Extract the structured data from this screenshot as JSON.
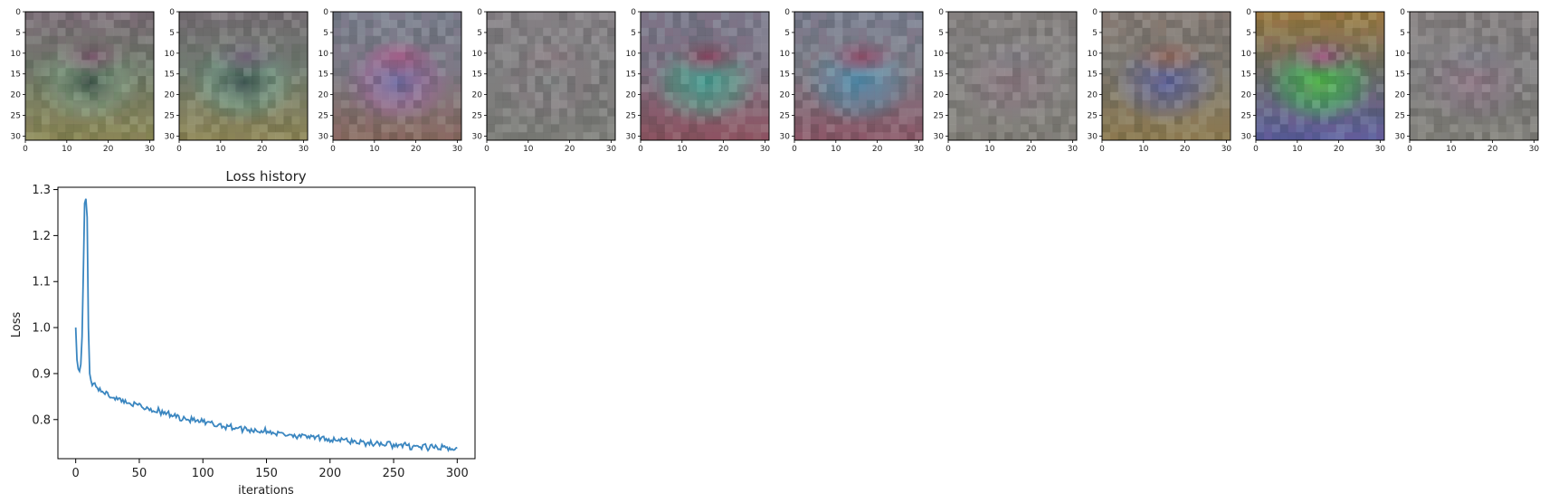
{
  "weights_panels": {
    "count": 10,
    "xlim": [
      0,
      31
    ],
    "ylim": [
      31,
      0
    ],
    "xticks": [
      "0",
      "10",
      "20",
      "30"
    ],
    "yticks": [
      "0",
      "5",
      "10",
      "15",
      "20",
      "25",
      "30"
    ],
    "palettes": [
      {
        "base": "#6f7b6a",
        "top": "#7d6f79",
        "mid": "#7fa083",
        "low": "#8c8a55",
        "core": "#3f5a4d",
        "accent": "#7a4f6b"
      },
      {
        "base": "#707d70",
        "top": "#7a7278",
        "mid": "#6f9a84",
        "low": "#8e8654",
        "core": "#3b5551",
        "accent": "#6f5a74"
      },
      {
        "base": "#7b7c86",
        "top": "#7a7f8e",
        "mid": "#9a6b9d",
        "low": "#8a6b5f",
        "core": "#6e6ba4",
        "accent": "#a55d86"
      },
      {
        "base": "#7f7f80",
        "top": "#858085",
        "mid": "#857c80",
        "low": "#7e7f7a",
        "core": "#7d8181",
        "accent": "#86787e"
      },
      {
        "base": "#7b7484",
        "top": "#7a7a8c",
        "mid": "#56a38c",
        "low": "#8d5561",
        "core": "#3c9a8e",
        "accent": "#9c3f64"
      },
      {
        "base": "#7b7d87",
        "top": "#7b8092",
        "mid": "#5f8fa7",
        "low": "#8c5868",
        "core": "#4f8fb1",
        "accent": "#a14a68"
      },
      {
        "base": "#838280",
        "top": "#85817f",
        "mid": "#8a7c83",
        "low": "#827f78",
        "core": "#8c7981",
        "accent": "#817f86"
      },
      {
        "base": "#7c7a72",
        "top": "#857b75",
        "mid": "#6b6d91",
        "low": "#8c7a4e",
        "core": "#5a61a0",
        "accent": "#9a6a58"
      },
      {
        "base": "#6f7268",
        "top": "#9c7b3d",
        "mid": "#45b05f",
        "low": "#5b5fa0",
        "core": "#52c04a",
        "accent": "#a23f7c"
      },
      {
        "base": "#807f80",
        "top": "#857f7f",
        "mid": "#8a7a86",
        "low": "#807f78",
        "core": "#8f7685",
        "accent": "#7d7f88"
      }
    ]
  },
  "chart_data": {
    "type": "line",
    "title": "Loss history",
    "xlabel": "iterations",
    "ylabel": "Loss",
    "xlim": [
      -14,
      314
    ],
    "ylim": [
      0.715,
      1.305
    ],
    "xticks": [
      0,
      50,
      100,
      150,
      200,
      250,
      300
    ],
    "yticks": [
      0.8,
      0.9,
      1.0,
      1.1,
      1.2,
      1.3
    ],
    "line_color": "#3a86c0",
    "grid": false,
    "series": [
      {
        "keypoints": [
          [
            0,
            1.0
          ],
          [
            1,
            0.93
          ],
          [
            2,
            0.91
          ],
          [
            3,
            0.905
          ],
          [
            4,
            0.92
          ],
          [
            5,
            0.98
          ],
          [
            6,
            1.12
          ],
          [
            7,
            1.27
          ],
          [
            8,
            1.28
          ],
          [
            9,
            1.24
          ],
          [
            10,
            1.0
          ],
          [
            11,
            0.9
          ],
          [
            12,
            0.885
          ],
          [
            15,
            0.875
          ],
          [
            20,
            0.862
          ],
          [
            25,
            0.855
          ],
          [
            30,
            0.848
          ],
          [
            40,
            0.838
          ],
          [
            50,
            0.83
          ],
          [
            60,
            0.822
          ],
          [
            70,
            0.814
          ],
          [
            80,
            0.806
          ],
          [
            90,
            0.8
          ],
          [
            100,
            0.794
          ],
          [
            110,
            0.789
          ],
          [
            120,
            0.785
          ],
          [
            130,
            0.781
          ],
          [
            140,
            0.777
          ],
          [
            150,
            0.774
          ],
          [
            160,
            0.77
          ],
          [
            170,
            0.767
          ],
          [
            180,
            0.763
          ],
          [
            190,
            0.76
          ],
          [
            200,
            0.757
          ],
          [
            210,
            0.755
          ],
          [
            220,
            0.752
          ],
          [
            230,
            0.749
          ],
          [
            240,
            0.747
          ],
          [
            250,
            0.745
          ],
          [
            260,
            0.743
          ],
          [
            270,
            0.741
          ],
          [
            280,
            0.739
          ],
          [
            290,
            0.738
          ],
          [
            300,
            0.737
          ]
        ]
      }
    ]
  }
}
